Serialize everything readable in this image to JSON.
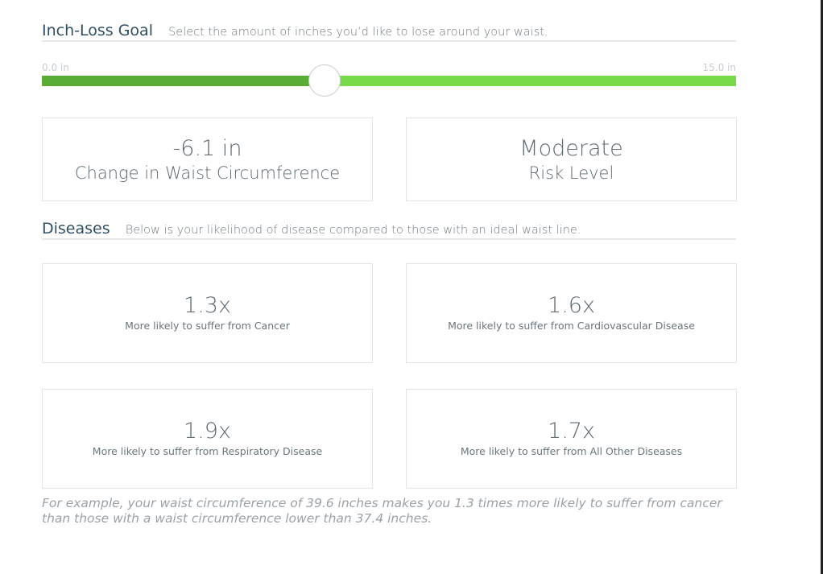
{
  "inch_loss_goal": {
    "title": "Inch-Loss Goal",
    "description": "Select the amount of inches you’d like to lose around your waist.",
    "slider": {
      "min_label": "0.0 in",
      "max_label": "15.0 in",
      "min": 0,
      "max": 15,
      "value": 6.1,
      "fill_color": "#5aac34",
      "track_color": "#78d949"
    }
  },
  "summary": {
    "waist_change": {
      "value": "-6.1 in",
      "label": "Change in Waist Circumference"
    },
    "risk_level": {
      "value": "Moderate",
      "label": "Risk Level"
    }
  },
  "diseases": {
    "title": "Diseases",
    "description": "Below is your likelihood of disease compared to those with an ideal waist line.",
    "cards": [
      {
        "value": "1.3x",
        "label": "More likely to suffer from Cancer"
      },
      {
        "value": "1.6x",
        "label": "More likely to suffer from Cardiovascular Disease"
      },
      {
        "value": "1.9x",
        "label": "More likely to suffer from Respiratory Disease"
      },
      {
        "value": "1.7x",
        "label": "More likely to suffer from All Other Diseases"
      }
    ]
  },
  "footnote": "For example, your waist circumference of 39.6 inches makes you 1.3 times more likely to suffer from cancer than those with a waist circumference lower than 37.4 inches."
}
